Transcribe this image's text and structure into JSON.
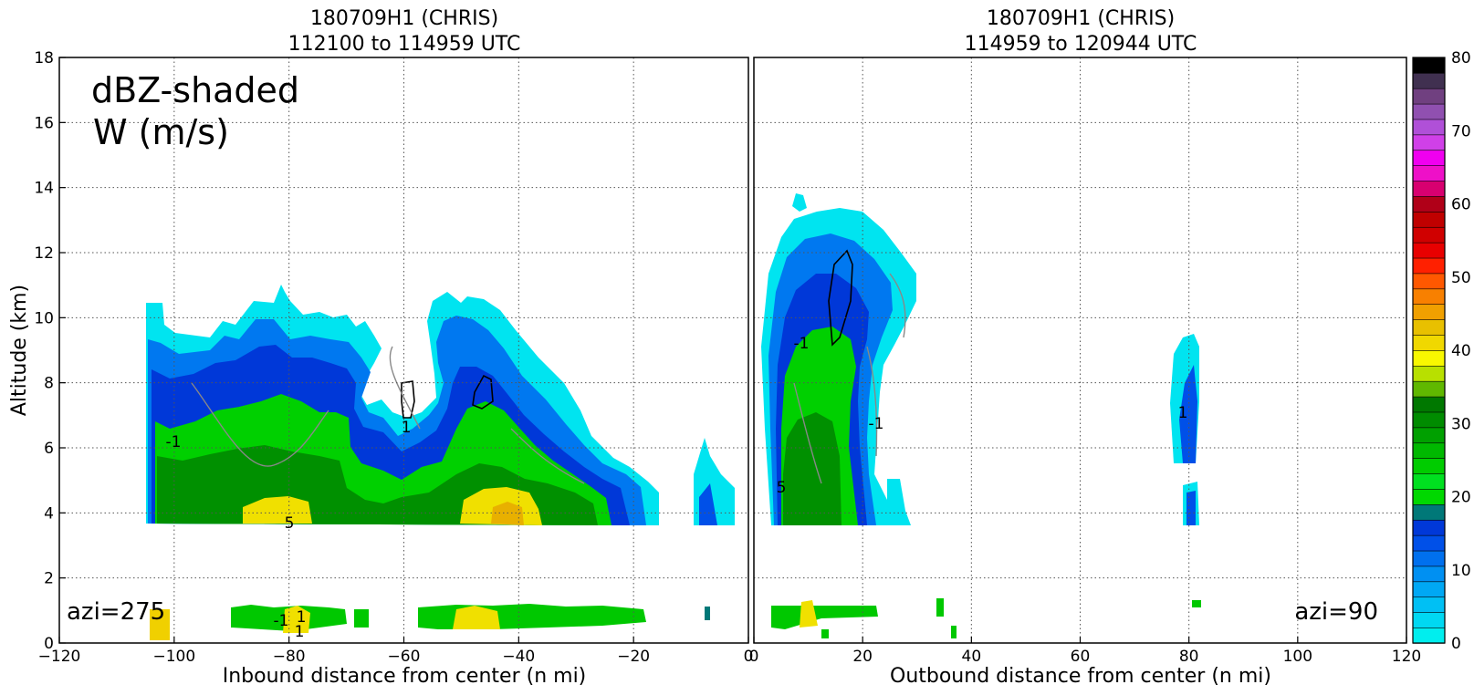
{
  "chart_data": [
    {
      "type": "heatmap",
      "title_line1": "180709H1 (CHRIS)",
      "title_line2": "112100 to 114959 UTC",
      "xlabel": "Inbound distance from center (n mi)",
      "ylabel": "Altitude (km)",
      "xlim": [
        -120,
        0
      ],
      "ylim": [
        0,
        18
      ],
      "x_ticks": [
        "−120",
        "−100",
        "−80",
        "−60",
        "−40",
        "−20",
        "0"
      ],
      "y_ticks": [
        "0",
        "2",
        "4",
        "6",
        "8",
        "10",
        "12",
        "14",
        "16",
        "18"
      ],
      "grid": true,
      "annotation_line1": "dBZ-shaded",
      "annotation_line2": "W (m/s)",
      "azimuth_label": "azi=275",
      "contour_labels": [
        "1",
        "-1",
        "5",
        "-1",
        "1",
        "1"
      ],
      "echo_regions_dbz": [
        {
          "x_range": [
            -105,
            -16
          ],
          "alt_range": [
            3.6,
            10.8
          ],
          "peak_dbz": 38
        },
        {
          "x_range": [
            -8,
            -2
          ],
          "alt_range": [
            3.6,
            6.3
          ],
          "peak_dbz": 12
        },
        {
          "x_range": [
            -90,
            -15
          ],
          "alt_range": [
            0.7,
            1.3
          ],
          "peak_dbz": 38
        }
      ]
    },
    {
      "type": "heatmap",
      "title_line1": "180709H1 (CHRIS)",
      "title_line2": "114959 to 120944 UTC",
      "xlabel": "Outbound distance from center (n mi)",
      "xlim": [
        0,
        120
      ],
      "ylim": [
        0,
        18
      ],
      "x_ticks": [
        "0",
        "20",
        "40",
        "60",
        "80",
        "100",
        "120"
      ],
      "grid": true,
      "azimuth_label": "azi=90",
      "contour_labels": [
        "-1",
        "-1",
        "1",
        "5"
      ],
      "echo_regions_dbz": [
        {
          "x_range": [
            2,
            30
          ],
          "alt_range": [
            3.6,
            13.8
          ],
          "peak_dbz": 30
        },
        {
          "x_range": [
            77,
            82
          ],
          "alt_range": [
            3.6,
            9.4
          ],
          "peak_dbz": 10
        },
        {
          "x_range": [
            3,
            36
          ],
          "alt_range": [
            0.2,
            1.3
          ],
          "peak_dbz": 38
        }
      ]
    }
  ],
  "colorbar": {
    "min": 0,
    "max": 80,
    "ticks": [
      "0",
      "10",
      "20",
      "30",
      "40",
      "50",
      "60",
      "70",
      "80"
    ],
    "colors": [
      "#00eeee",
      "#00d8f2",
      "#00c0f4",
      "#00a8f4",
      "#0090f2",
      "#0070ee",
      "#0050e8",
      "#0038d8",
      "#007878",
      "#00d800",
      "#00e020",
      "#00cc00",
      "#00b800",
      "#00a000",
      "#008c00",
      "#007800",
      "#60b800",
      "#b8e000",
      "#f8f800",
      "#f0d800",
      "#e8c000",
      "#f0a000",
      "#f88000",
      "#ff5800",
      "#ff2000",
      "#e80000",
      "#d00000",
      "#c00000",
      "#b00018",
      "#d80070",
      "#ee10c8",
      "#f000f0",
      "#d040e8",
      "#b050d8",
      "#9050b0",
      "#704080",
      "#403050",
      "#000000"
    ]
  }
}
